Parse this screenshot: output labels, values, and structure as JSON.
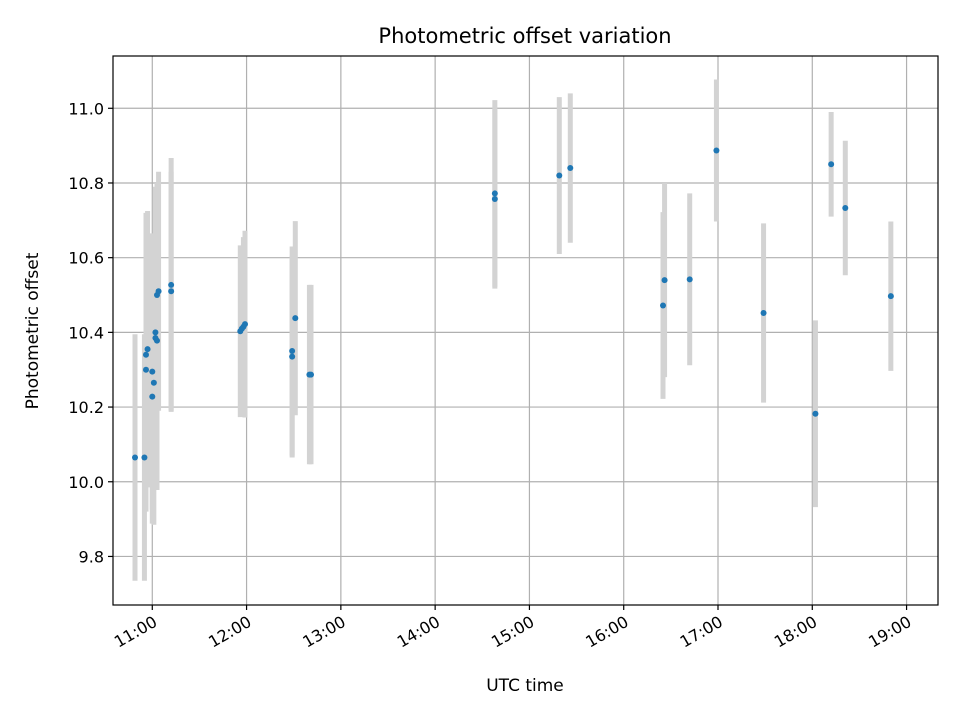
{
  "chart_data": {
    "type": "scatter",
    "title": "Photometric offset variation",
    "xlabel": "UTC time",
    "ylabel": "Photometric offset",
    "xlim": [
      "10:35",
      "19:20"
    ],
    "ylim": [
      9.67,
      11.14
    ],
    "x_ticks": [
      "11:00",
      "12:00",
      "13:00",
      "14:00",
      "15:00",
      "16:00",
      "17:00",
      "18:00",
      "19:00"
    ],
    "y_ticks": [
      9.8,
      10.0,
      10.2,
      10.4,
      10.6,
      10.8,
      11.0
    ],
    "grid": true,
    "legend": "none",
    "colors": {
      "points": "#1f77b4",
      "error_bars": "#d3d3d3"
    },
    "series": [
      {
        "points": [
          {
            "t": "10:49",
            "y": 10.065,
            "err": 0.33
          },
          {
            "t": "10:55",
            "y": 10.065,
            "err": 0.33
          },
          {
            "t": "10:56",
            "y": 10.3,
            "err": 0.38
          },
          {
            "t": "10:56",
            "y": 10.34,
            "err": 0.38
          },
          {
            "t": "10:57",
            "y": 10.355,
            "err": 0.37
          },
          {
            "t": "11:00",
            "y": 10.295,
            "err": 0.37
          },
          {
            "t": "11:00",
            "y": 10.228,
            "err": 0.34
          },
          {
            "t": "11:01",
            "y": 10.265,
            "err": 0.38
          },
          {
            "t": "11:02",
            "y": 10.385,
            "err": 0.4
          },
          {
            "t": "11:02",
            "y": 10.4,
            "err": 0.39
          },
          {
            "t": "11:03",
            "y": 10.378,
            "err": 0.4
          },
          {
            "t": "11:03",
            "y": 10.5,
            "err": 0.3
          },
          {
            "t": "11:04",
            "y": 10.51,
            "err": 0.32
          },
          {
            "t": "11:12",
            "y": 10.51,
            "err": 0.32
          },
          {
            "t": "11:12",
            "y": 10.527,
            "err": 0.34
          },
          {
            "t": "11:56",
            "y": 10.403,
            "err": 0.23
          },
          {
            "t": "11:57",
            "y": 10.41,
            "err": 0.22
          },
          {
            "t": "11:58",
            "y": 10.415,
            "err": 0.24
          },
          {
            "t": "11:59",
            "y": 10.422,
            "err": 0.25
          },
          {
            "t": "12:29",
            "y": 10.35,
            "err": 0.28
          },
          {
            "t": "12:29",
            "y": 10.335,
            "err": 0.27
          },
          {
            "t": "12:31",
            "y": 10.438,
            "err": 0.26
          },
          {
            "t": "12:40",
            "y": 10.287,
            "err": 0.24
          },
          {
            "t": "12:41",
            "y": 10.287,
            "err": 0.24
          },
          {
            "t": "14:38",
            "y": 10.757,
            "err": 0.24
          },
          {
            "t": "14:38",
            "y": 10.772,
            "err": 0.25
          },
          {
            "t": "15:19",
            "y": 10.82,
            "err": 0.21
          },
          {
            "t": "15:26",
            "y": 10.84,
            "err": 0.2
          },
          {
            "t": "16:25",
            "y": 10.472,
            "err": 0.25
          },
          {
            "t": "16:26",
            "y": 10.54,
            "err": 0.26
          },
          {
            "t": "16:42",
            "y": 10.542,
            "err": 0.23
          },
          {
            "t": "16:59",
            "y": 10.887,
            "err": 0.19
          },
          {
            "t": "17:29",
            "y": 10.452,
            "err": 0.24
          },
          {
            "t": "18:02",
            "y": 10.182,
            "err": 0.25
          },
          {
            "t": "18:12",
            "y": 10.85,
            "err": 0.14
          },
          {
            "t": "18:21",
            "y": 10.733,
            "err": 0.18
          },
          {
            "t": "18:50",
            "y": 10.497,
            "err": 0.2
          }
        ]
      }
    ]
  }
}
